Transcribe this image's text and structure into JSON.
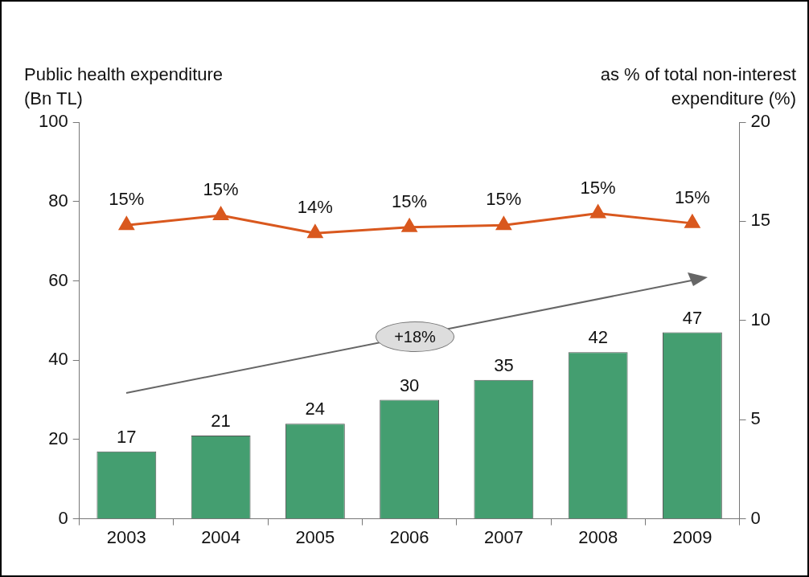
{
  "chart_data": {
    "type": "bar",
    "ylabel": "Public health expenditure (Bn TL)",
    "y2label": "as % of total non-interest expenditure (%)",
    "categories": [
      "2003",
      "2004",
      "2005",
      "2006",
      "2007",
      "2008",
      "2009"
    ],
    "series": [
      {
        "type": "bar",
        "color": "#449e70",
        "values": [
          17,
          21,
          24,
          30,
          35,
          42,
          47
        ]
      },
      {
        "type": "line",
        "axis": "y2",
        "color": "#d9581e",
        "values": [
          14.8,
          15.3,
          14.4,
          14.7,
          14.8,
          15.4,
          14.9
        ],
        "value_labels": [
          "15%",
          "15%",
          "14%",
          "15%",
          "15%",
          "15%",
          "15%"
        ]
      }
    ],
    "ylim": [
      0,
      100
    ],
    "yticks": [
      0,
      20,
      40,
      60,
      80,
      100
    ],
    "y2lim": [
      0,
      20
    ],
    "y2ticks": [
      0,
      5,
      10,
      15,
      20
    ],
    "data_labels": true,
    "grid": false,
    "legend": false,
    "marker": "triangle",
    "line_style": "solid",
    "annotations": [
      "+18%"
    ]
  }
}
